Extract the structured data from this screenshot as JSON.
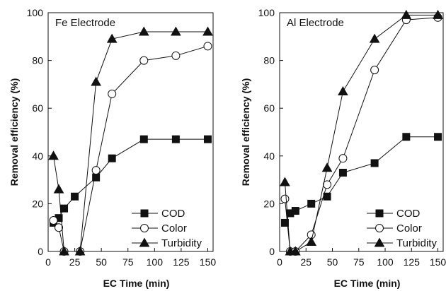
{
  "chart_data": [
    {
      "type": "line",
      "title": "Fe Electrode",
      "xlabel": "EC Time (min)",
      "ylabel": "Removal efficiency (%)",
      "xlim": [
        0,
        155
      ],
      "ylim": [
        0,
        100
      ],
      "xticks": [
        0,
        25,
        50,
        75,
        100,
        125,
        150
      ],
      "yticks": [
        0,
        20,
        40,
        60,
        80,
        100
      ],
      "grid": false,
      "legend_position": "bottom-right",
      "series": [
        {
          "name": "COD",
          "marker": "square-filled",
          "x": [
            5,
            10,
            15,
            25,
            45,
            60,
            90,
            120,
            150
          ],
          "y": [
            12,
            14,
            18,
            23,
            31,
            39,
            47,
            47,
            47
          ]
        },
        {
          "name": "Color",
          "marker": "circle-open",
          "x": [
            5,
            10,
            15,
            30,
            45,
            60,
            90,
            120,
            150
          ],
          "y": [
            13,
            10,
            0,
            0,
            34,
            66,
            80,
            82,
            86
          ]
        },
        {
          "name": "Turbidity",
          "marker": "triangle-filled",
          "x": [
            5,
            10,
            15,
            30,
            45,
            60,
            90,
            120,
            150
          ],
          "y": [
            40,
            26,
            0,
            0,
            71,
            89,
            92,
            92,
            92
          ]
        }
      ]
    },
    {
      "type": "line",
      "title": "Al Electrode",
      "xlabel": "EC Time (min)",
      "ylabel": "Removal efficiency (%)",
      "xlim": [
        0,
        155
      ],
      "ylim": [
        0,
        100
      ],
      "xticks": [
        0,
        25,
        50,
        75,
        100,
        125,
        150
      ],
      "yticks": [
        0,
        20,
        40,
        60,
        80,
        100
      ],
      "grid": false,
      "legend_position": "bottom-right",
      "series": [
        {
          "name": "COD",
          "marker": "square-filled",
          "x": [
            5,
            10,
            15,
            30,
            45,
            60,
            90,
            120,
            150
          ],
          "y": [
            12,
            16,
            17,
            20,
            23,
            33,
            37,
            48,
            48
          ]
        },
        {
          "name": "Color",
          "marker": "circle-open",
          "x": [
            5,
            10,
            15,
            30,
            45,
            60,
            90,
            120,
            150
          ],
          "y": [
            22,
            0,
            0,
            7,
            28,
            39,
            76,
            97,
            98
          ]
        },
        {
          "name": "Turbidity",
          "marker": "triangle-filled",
          "x": [
            5,
            10,
            15,
            30,
            45,
            60,
            90,
            120,
            150
          ],
          "y": [
            29,
            0,
            0,
            4,
            35,
            67,
            89,
            99,
            99
          ]
        }
      ]
    }
  ]
}
